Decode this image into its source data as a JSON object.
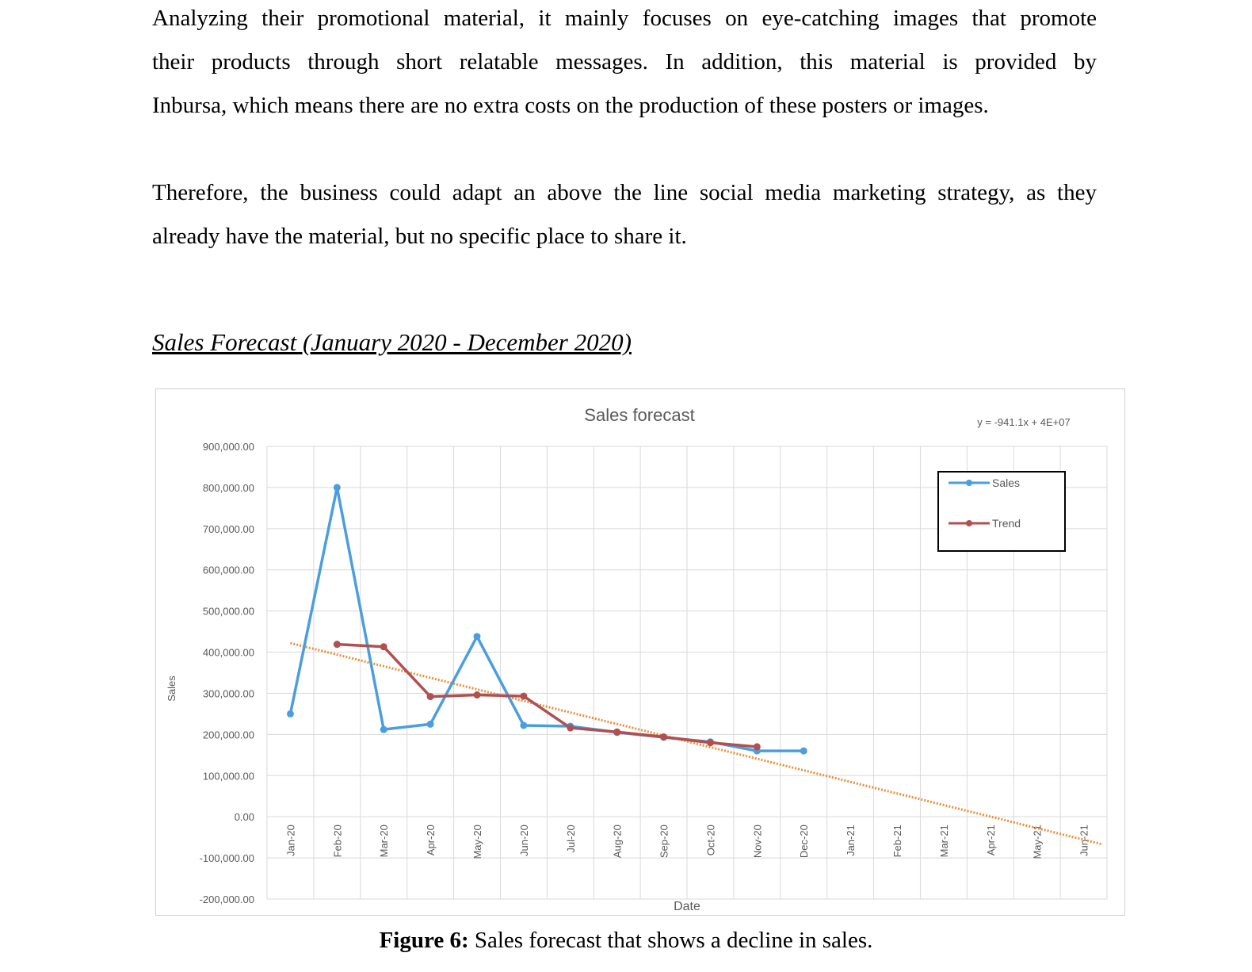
{
  "document": {
    "paragraph1_lines": [
      "Analyzing their promotional material, it mainly focuses on eye-catching images that promote",
      "their products through short relatable messages. In addition, this material is provided by",
      "Inbursa, which means there are no extra costs on the production of these posters or images."
    ],
    "paragraph2_lines": [
      "Therefore, the business could adapt an above the line social media marketing strategy, as they",
      "already have the material, but no specific place to share it."
    ],
    "section_title": "Sales Forecast (January 2020 - December 2020)",
    "caption_bold": "Figure 6:",
    "caption_text": " Sales forecast that shows a decline in sales."
  },
  "colors": {
    "sales": "#4a9ee0",
    "trend": "#b05050",
    "trendline": "#e8903c",
    "grid": "#d9d9d9",
    "text": "#595959"
  },
  "chart_data": {
    "type": "line",
    "title": "Sales forecast",
    "equation": "y = -941.1x + 4E+07",
    "xlabel": "Date",
    "ylabel": "Sales",
    "ylim": [
      -200000,
      900000
    ],
    "yticks": [
      900000,
      800000,
      700000,
      600000,
      500000,
      400000,
      300000,
      200000,
      100000,
      0,
      -100000,
      -200000
    ],
    "ytick_labels": [
      "900,000.00",
      "800,000.00",
      "700,000.00",
      "600,000.00",
      "500,000.00",
      "400,000.00",
      "300,000.00",
      "200,000.00",
      "100,000.00",
      "0.00",
      "-100,000.00",
      "-200,000.00"
    ],
    "categories": [
      "Jan-20",
      "Feb-20",
      "Mar-20",
      "Apr-20",
      "May-20",
      "Jun-20",
      "Jul-20",
      "Aug-20",
      "Sep-20",
      "Oct-20",
      "Nov-20",
      "Dec-20",
      "Jan-21",
      "Feb-21",
      "Mar-21",
      "Apr-21",
      "May-21",
      "Jun-21"
    ],
    "legend_position": "top-right",
    "grid": true,
    "series": [
      {
        "name": "Sales",
        "values": [
          250000,
          800000,
          212000,
          225000,
          438000,
          222000,
          220000,
          205000,
          193000,
          182000,
          160000,
          160000,
          null,
          null,
          null,
          null,
          null,
          null
        ]
      },
      {
        "name": "Trend",
        "values": [
          null,
          419000,
          413000,
          292000,
          296000,
          293000,
          216000,
          206000,
          194000,
          180000,
          170000,
          null,
          null,
          null,
          null,
          null,
          null,
          null
        ]
      }
    ],
    "trendline": {
      "style": "dotted",
      "start": {
        "category": "Jan-20",
        "value": 422000
      },
      "end": {
        "category": "Jun-21",
        "value": -67000
      }
    }
  }
}
